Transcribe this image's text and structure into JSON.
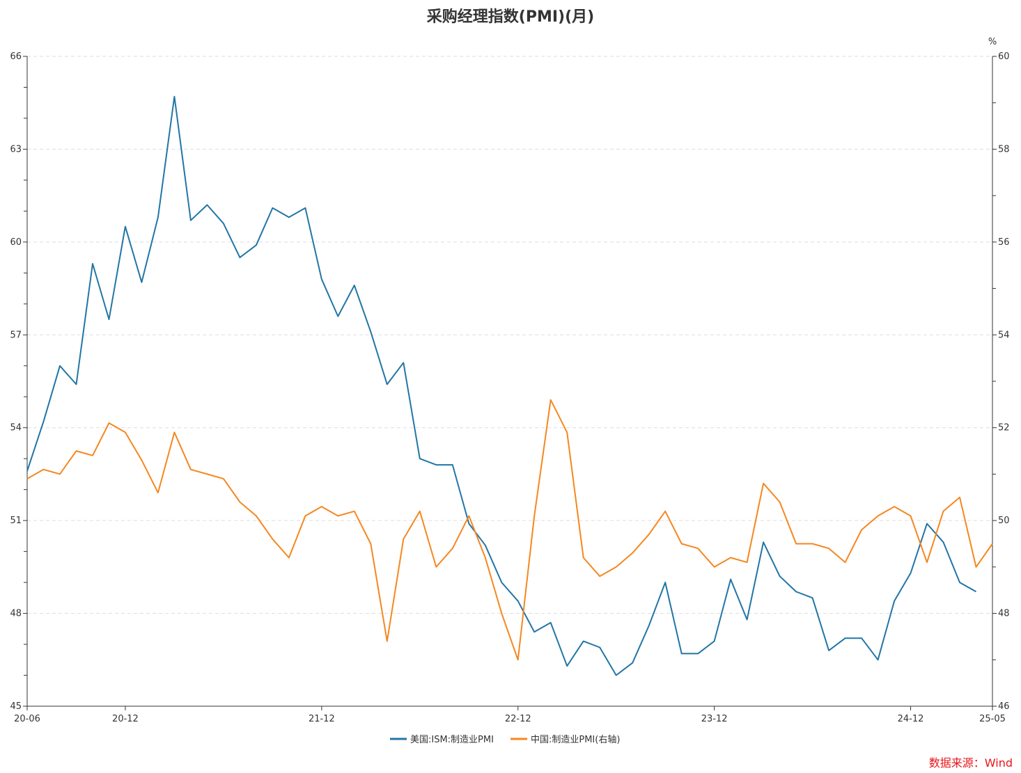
{
  "chart_data": {
    "type": "line",
    "title": "采购经理指数(PMI)(月)",
    "source": "数据来源：Wind",
    "right_unit": "%",
    "x": [
      "20-06",
      "20-07",
      "20-08",
      "20-09",
      "20-10",
      "20-11",
      "20-12",
      "21-01",
      "21-02",
      "21-03",
      "21-04",
      "21-05",
      "21-06",
      "21-07",
      "21-08",
      "21-09",
      "21-10",
      "21-11",
      "21-12",
      "22-01",
      "22-02",
      "22-03",
      "22-04",
      "22-05",
      "22-06",
      "22-07",
      "22-08",
      "22-09",
      "22-10",
      "22-11",
      "22-12",
      "23-01",
      "23-02",
      "23-03",
      "23-04",
      "23-05",
      "23-06",
      "23-07",
      "23-08",
      "23-09",
      "23-10",
      "23-11",
      "23-12",
      "24-01",
      "24-02",
      "24-03",
      "24-04",
      "24-05",
      "24-06",
      "24-07",
      "24-08",
      "24-09",
      "24-10",
      "24-11",
      "24-12",
      "25-01",
      "25-02",
      "25-03",
      "25-04",
      "25-05"
    ],
    "x_tick_labels": [
      "20-06",
      "20-12",
      "21-12",
      "22-12",
      "23-12",
      "24-12",
      "25-05"
    ],
    "left_axis": {
      "ylim": [
        45,
        66
      ],
      "ticks": [
        45,
        48,
        51,
        54,
        57,
        60,
        63,
        66
      ],
      "minor_step": 1
    },
    "right_axis": {
      "ylim": [
        46,
        60
      ],
      "ticks": [
        46,
        48,
        50,
        52,
        54,
        56,
        58,
        60
      ],
      "minor_step": 1
    },
    "grid": true,
    "legend_position": "bottom",
    "series": [
      {
        "name": "美国:ISM:制造业PMI",
        "axis": "left",
        "color": "#2275a5",
        "values": [
          52.6,
          54.2,
          56.0,
          55.4,
          59.3,
          57.5,
          60.5,
          58.7,
          60.8,
          64.7,
          60.7,
          61.2,
          60.6,
          59.5,
          59.9,
          61.1,
          60.8,
          61.1,
          58.8,
          57.6,
          58.6,
          57.1,
          55.4,
          56.1,
          53.0,
          52.8,
          52.8,
          50.9,
          50.2,
          49.0,
          48.4,
          47.4,
          47.7,
          46.3,
          47.1,
          46.9,
          46.0,
          46.4,
          47.6,
          49.0,
          46.7,
          46.7,
          47.1,
          49.1,
          47.8,
          50.3,
          49.2,
          48.7,
          48.5,
          46.8,
          47.2,
          47.2,
          46.5,
          48.4,
          49.3,
          50.9,
          50.3,
          49.0,
          48.7,
          null
        ]
      },
      {
        "name": "中国:制造业PMI(右轴)",
        "axis": "right",
        "color": "#f5871f",
        "values": [
          50.9,
          51.1,
          51.0,
          51.5,
          51.4,
          52.1,
          51.9,
          51.3,
          50.6,
          51.9,
          51.1,
          51.0,
          50.9,
          50.4,
          50.1,
          49.6,
          49.2,
          50.1,
          50.3,
          50.1,
          50.2,
          49.5,
          47.4,
          49.6,
          50.2,
          49.0,
          49.4,
          50.1,
          49.2,
          48.0,
          47.0,
          50.1,
          52.6,
          51.9,
          49.2,
          48.8,
          49.0,
          49.3,
          49.7,
          50.2,
          49.5,
          49.4,
          49.0,
          49.2,
          49.1,
          50.8,
          50.4,
          49.5,
          49.5,
          49.4,
          49.1,
          49.8,
          50.1,
          50.3,
          50.1,
          49.1,
          50.2,
          50.5,
          49.0,
          49.5
        ]
      }
    ]
  }
}
